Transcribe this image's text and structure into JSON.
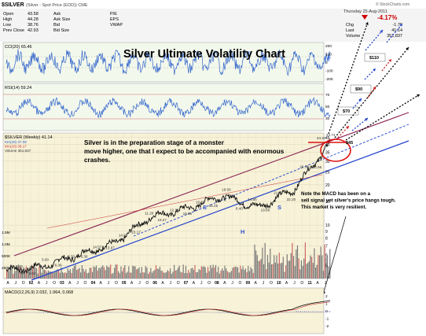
{
  "header": {
    "symbol": "$SILVER",
    "description": "(Silver - Spot Price (EOD)) CME",
    "watermark": "© StockCharts.com",
    "date": "Thursday 25-Aug-2011",
    "change_pct": "-4.17%",
    "quote_left": [
      {
        "label": "Open",
        "value": "43.58"
      },
      {
        "label": "High",
        "value": "44.28"
      },
      {
        "label": "Low",
        "value": "38.76"
      },
      {
        "label": "Prev Close",
        "value": "42.93"
      }
    ],
    "quote_mid": [
      "Ask",
      "Ask Size",
      "Bid",
      "Bid Size"
    ],
    "quote_right_labels": [
      "P/E",
      "EPS",
      "VWAP"
    ],
    "quote_far": [
      {
        "label": "Chg",
        "value": "-1.79"
      },
      {
        "label": "Last",
        "value": "41.14"
      },
      {
        "label": "Volume",
        "value": "351,837"
      }
    ]
  },
  "panels": {
    "cci": {
      "label": "CCI(20) 65.46",
      "ticks": [
        "200",
        "100",
        "0",
        "-100",
        "-200"
      ],
      "last": "65.46"
    },
    "rsi": {
      "label": "RSI(14) 59.24",
      "ticks": [
        "70",
        "50",
        "30"
      ],
      "last": "59.24"
    },
    "price": {
      "label": "$SILVER (Weekly) 41.14",
      "ma_labels": [
        "MA(30) 37.08",
        "MA(20) 38.17",
        "Volume 351,837"
      ],
      "volume_ticks": [
        "1.5M",
        "1.0M",
        "500K",
        "250K"
      ]
    },
    "macd": {
      "label": "MACD(12,26,9) 2.032, 1.964, 0.068",
      "ticks": [
        "2",
        "1",
        "0",
        "-1",
        "-2"
      ],
      "last": "0.068"
    }
  },
  "overlay": {
    "title": "Silver Ultimate Volatility Chart",
    "main_comment": "Silver is in the preparation stage of a monster move higher, one that I expect to be accompanied with enormous crashes.",
    "macd_note": "Note the MACD has been on a sell signal yet silver's price hangs tough. This market is very resilient.",
    "targets": [
      "$110",
      "$90",
      "$70",
      "$45"
    ],
    "peak_labels": [
      "44.20",
      "43.74"
    ],
    "pattern_labels": [
      "S",
      "H",
      "S"
    ]
  },
  "chart_data": {
    "type": "line",
    "title": "Silver Ultimate Volatility Chart",
    "xlabel": "",
    "ylabel": "",
    "x": [
      "2002",
      "2003",
      "2004",
      "2005",
      "2006",
      "2007",
      "2008",
      "2009",
      "2010",
      "2011"
    ],
    "series": [
      {
        "name": "$SILVER (Weekly)",
        "values": [
          4.6,
          4.9,
          6.0,
          7.3,
          11.5,
          13.2,
          16.6,
          13.5,
          18.5,
          41.14
        ]
      }
    ],
    "price_labels": [
      "5.36",
      "5.03",
      "5.60",
      "6.36",
      "8.30",
      "6.36",
      "14.57",
      "13.97",
      "14.97",
      "15.17",
      "11.28",
      "16.27",
      "12.18",
      "19.55",
      "10.50",
      "16.25",
      "19.58",
      "8.40",
      "14.86",
      "19.88",
      "21.36",
      "32.20",
      "26.36",
      "34.56"
    ],
    "x_ticks": [
      "A",
      "J",
      "O",
      "02",
      "A",
      "J",
      "O",
      "03",
      "A",
      "J",
      "O",
      "04",
      "A",
      "J",
      "O",
      "05",
      "A",
      "J",
      "O",
      "06",
      "A",
      "J",
      "O",
      "07",
      "A",
      "J",
      "O",
      "08",
      "A",
      "J",
      "O",
      "09",
      "A",
      "J",
      "O",
      "10",
      "A",
      "J",
      "O",
      "11",
      "A",
      "J"
    ],
    "y_ticks": [
      "45",
      "40",
      "35",
      "30",
      "25",
      "20",
      "15",
      "10",
      "9",
      "8",
      "7",
      "6",
      "5"
    ],
    "ylim": [
      4,
      48
    ],
    "log_scale": true,
    "grid": true,
    "legend": "top-left"
  }
}
